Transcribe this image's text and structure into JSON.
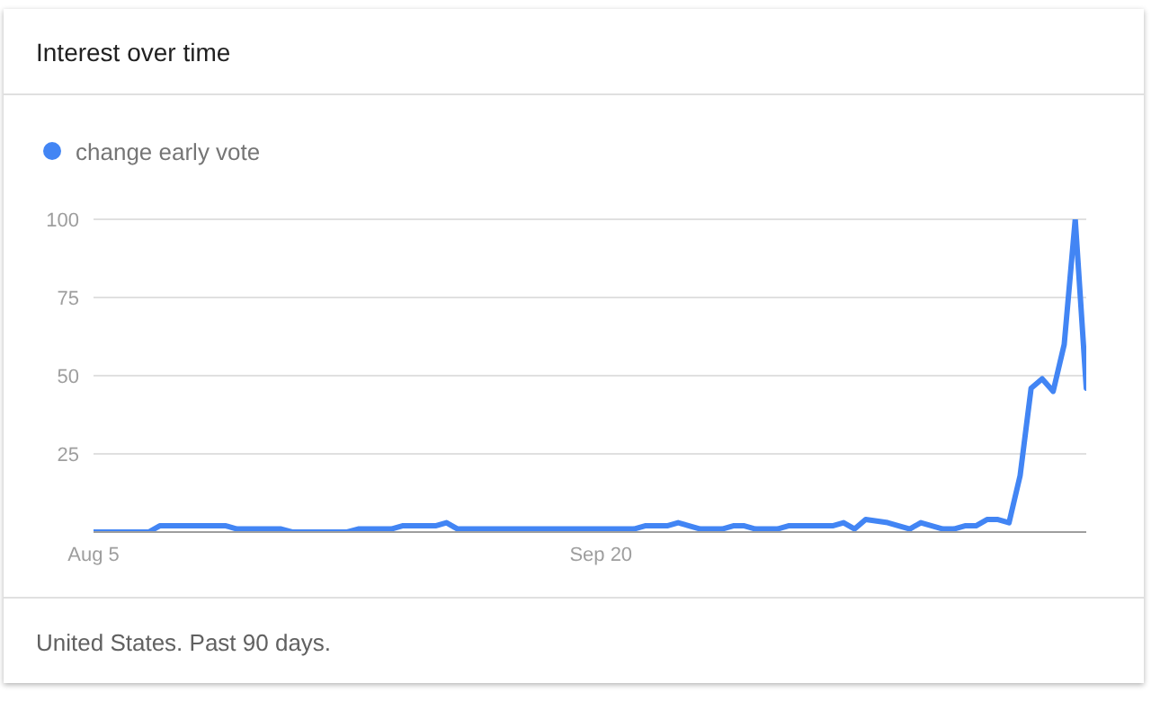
{
  "chart_data": {
    "type": "line",
    "title": "Interest over time",
    "annotations": [
      "United States. Past 90 days."
    ],
    "x": [
      "--08-05",
      "--08-10",
      "--08-11",
      "--08-17",
      "--08-18",
      "--08-22",
      "--08-23",
      "--08-28",
      "--08-29",
      "--09-01",
      "--09-02",
      "--09-05",
      "--09-06",
      "--09-07",
      "--09-23",
      "--09-24",
      "--09-26",
      "--09-27",
      "--09-29",
      "--10-01",
      "--10-02",
      "--10-03",
      "--10-04",
      "--10-06",
      "--10-07",
      "--10-11",
      "--10-12",
      "--10-13",
      "--10-14",
      "--10-16",
      "--10-18",
      "--10-19",
      "--10-21",
      "--10-22",
      "--10-23",
      "--10-24",
      "--10-25",
      "--10-26",
      "--10-27",
      "--10-28",
      "--10-29",
      "--10-30",
      "--10-31",
      "--11-01",
      "--11-02",
      "--11-03"
    ],
    "series": [
      {
        "name": "change early vote",
        "color": "#4285f4",
        "values": [
          0,
          0,
          2,
          2,
          1,
          1,
          0,
          0,
          1,
          1,
          2,
          2,
          3,
          1,
          1,
          2,
          2,
          3,
          1,
          1,
          2,
          2,
          1,
          1,
          2,
          2,
          3,
          1,
          4,
          3,
          1,
          3,
          1,
          1,
          2,
          2,
          4,
          4,
          3,
          18,
          46,
          49,
          45,
          60,
          100,
          46
        ]
      }
    ],
    "xlim": [
      "--08-05",
      "--11-03"
    ],
    "xticks": [
      {
        "value": "--08-05",
        "label": "Aug 5"
      },
      {
        "value": "--09-20",
        "label": "Sep 20"
      }
    ],
    "ylim": [
      0,
      100
    ],
    "yticks": [
      25,
      50,
      75,
      100
    ],
    "grid": "y",
    "legend": "top left",
    "marker": "none",
    "line_style": "solid"
  }
}
